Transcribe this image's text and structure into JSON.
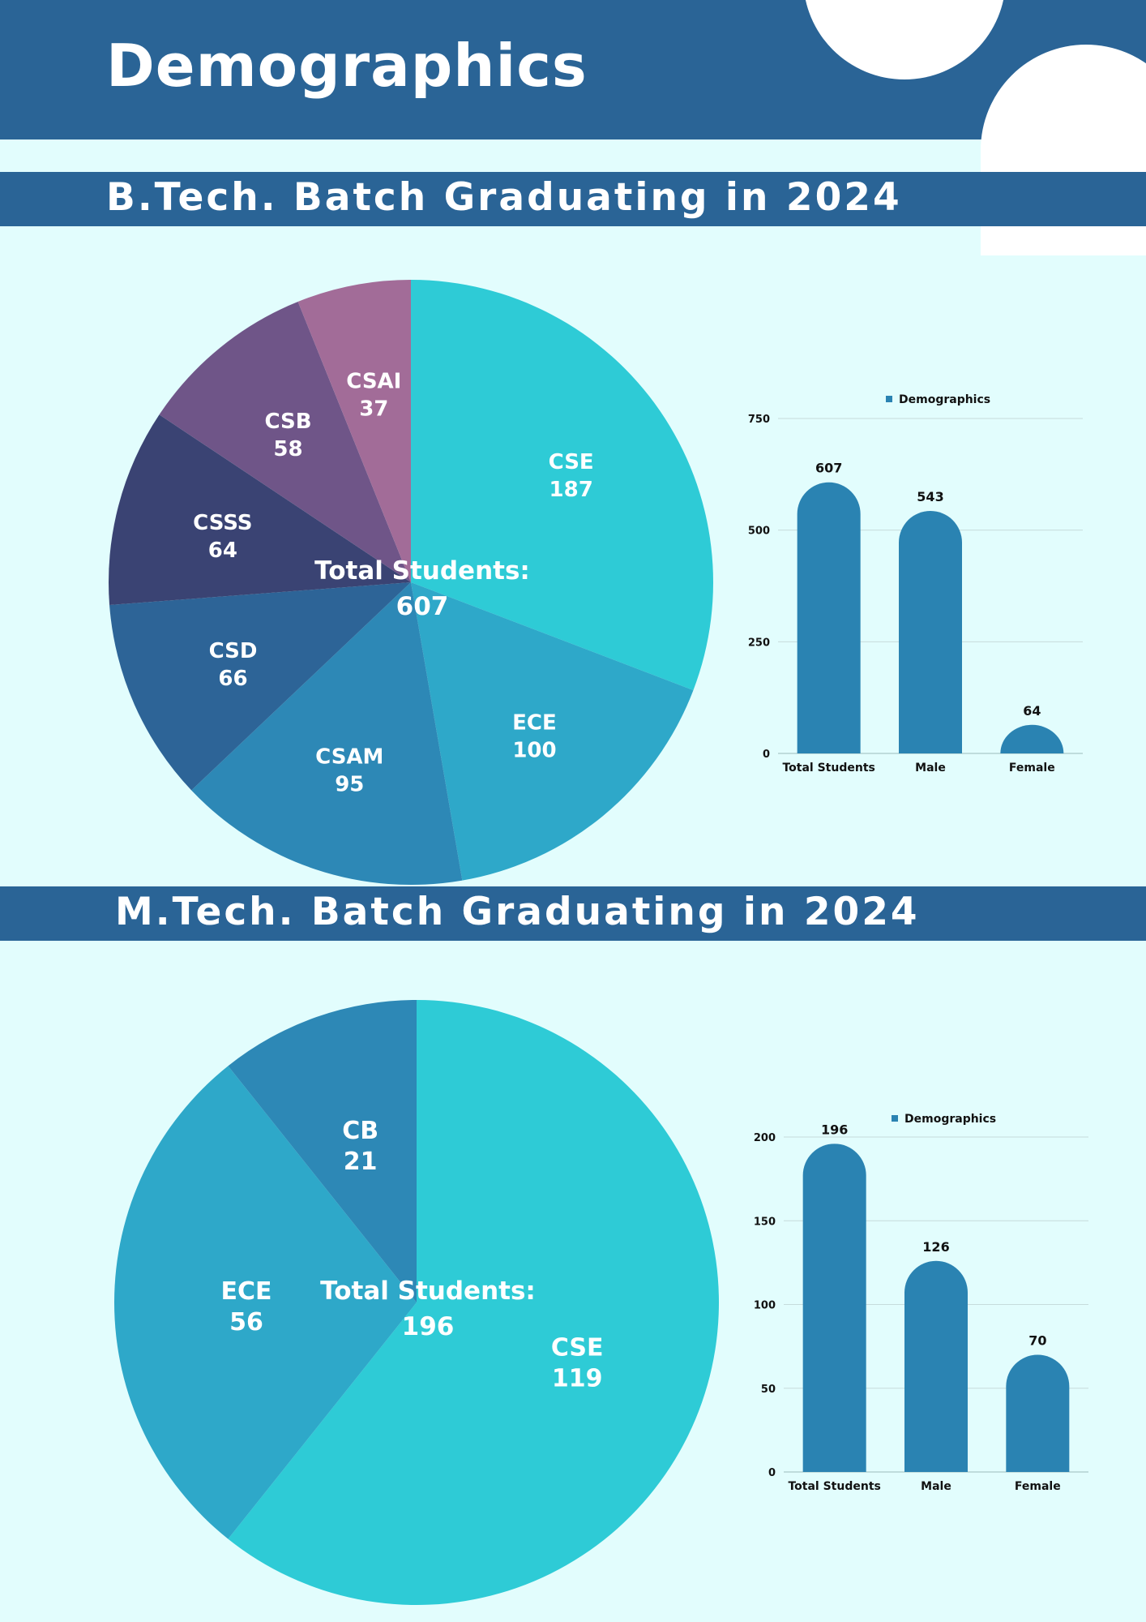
{
  "header": {
    "title": "Demographics"
  },
  "sections": [
    {
      "title": "B.Tech. Batch Graduating in 2024"
    },
    {
      "title": "M.Tech. Batch Graduating in 2024"
    }
  ],
  "colors": {
    "header": "#2a6496",
    "background": "#e2fdfd",
    "bar": "#2a83b2"
  },
  "chart_data": [
    {
      "type": "pie",
      "slices": [
        {
          "label": "CSE",
          "value": 187,
          "color": "#2ecbd6"
        },
        {
          "label": "ECE",
          "value": 100,
          "color": "#2ea8c9"
        },
        {
          "label": "CSAM",
          "value": 95,
          "color": "#2d88b6"
        },
        {
          "label": "CSD",
          "value": 66,
          "color": "#2d6497"
        },
        {
          "label": "CSSS",
          "value": 64,
          "color": "#3a4373"
        },
        {
          "label": "CSB",
          "value": 58,
          "color": "#6f5588"
        },
        {
          "label": "CSAI",
          "value": 37,
          "color": "#a26c98"
        }
      ],
      "center_label": "Total Students:",
      "center_value": "607"
    },
    {
      "type": "bar",
      "legend": "Demographics",
      "legend_position": "top",
      "categories": [
        "Total Students",
        "Male",
        "Female"
      ],
      "values": [
        607,
        543,
        64
      ],
      "ylim": [
        0,
        750
      ],
      "yticks": [
        0,
        250,
        500,
        750
      ],
      "grid": true
    },
    {
      "type": "pie",
      "slices": [
        {
          "label": "CSE",
          "value": 119,
          "color": "#2ecbd6"
        },
        {
          "label": "ECE",
          "value": 56,
          "color": "#2ea8c9"
        },
        {
          "label": "CB",
          "value": 21,
          "color": "#2d88b6"
        }
      ],
      "center_label": "Total Students:",
      "center_value": "196"
    },
    {
      "type": "bar",
      "legend": "Demographics",
      "legend_position": "top",
      "categories": [
        "Total Students",
        "Male",
        "Female"
      ],
      "values": [
        196,
        126,
        70
      ],
      "ylim": [
        0,
        200
      ],
      "yticks": [
        0,
        50,
        100,
        150,
        200
      ],
      "grid": true
    }
  ]
}
